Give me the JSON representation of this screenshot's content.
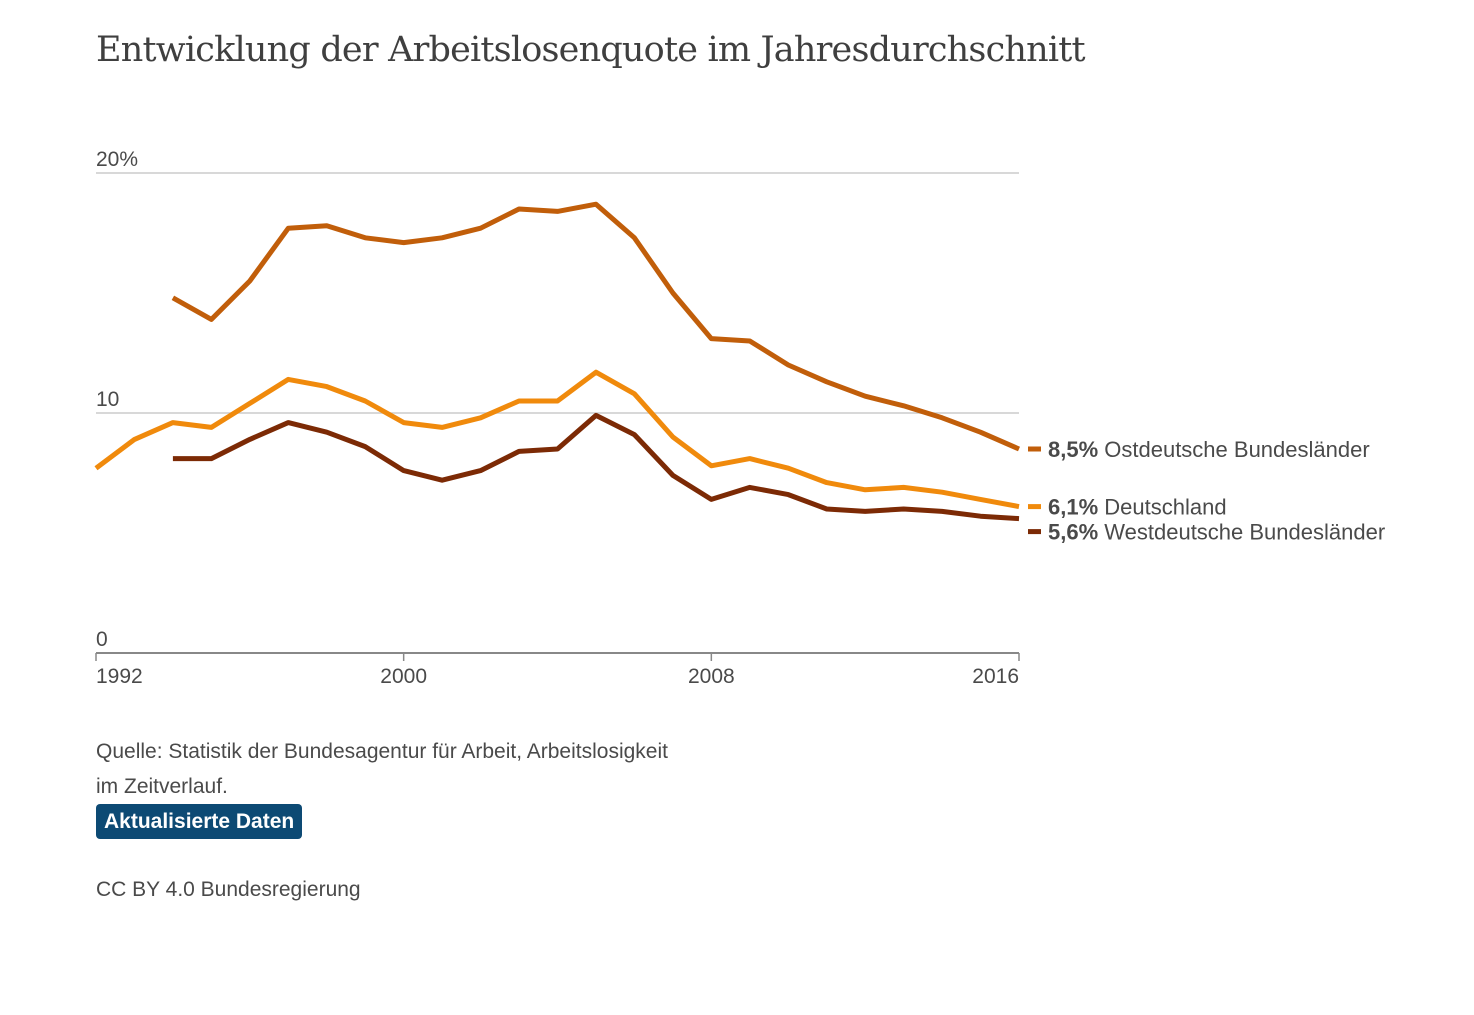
{
  "title": "Entwicklung der Arbeitslosenquote im Jahresdurchschnitt",
  "chart_data": {
    "type": "line",
    "title": "Entwicklung der Arbeitslosenquote im Jahresdurchschnitt",
    "xlim": [
      1992,
      2016
    ],
    "ylim": [
      0,
      20
    ],
    "x_ticks": [
      {
        "value": 1992,
        "label": "1992"
      },
      {
        "value": 2000,
        "label": "2000"
      },
      {
        "value": 2008,
        "label": "2008"
      },
      {
        "value": 2016,
        "label": "2016"
      }
    ],
    "y_ticks": [
      {
        "value": 20,
        "label": "20%"
      },
      {
        "value": 10,
        "label": "10"
      },
      {
        "value": 0,
        "label": "0"
      }
    ],
    "grid": true,
    "series": [
      {
        "name": "Ostdeutsche Bundesländer",
        "end_value_label": "8,5%",
        "color": "#c15e0a",
        "x": [
          1994,
          1995,
          1996,
          1997,
          1998,
          1999,
          2000,
          2001,
          2002,
          2003,
          2004,
          2005,
          2006,
          2007,
          2008,
          2009,
          2010,
          2011,
          2012,
          2013,
          2014,
          2015,
          2016
        ],
        "values": [
          14.8,
          13.9,
          15.5,
          17.7,
          17.8,
          17.3,
          17.1,
          17.3,
          17.7,
          18.5,
          18.4,
          18.7,
          17.3,
          15.0,
          13.1,
          13.0,
          12.0,
          11.3,
          10.7,
          10.3,
          9.8,
          9.2,
          8.5
        ]
      },
      {
        "name": "Deutschland",
        "end_value_label": "6,1%",
        "color": "#f08a0c",
        "x": [
          1992,
          1993,
          1994,
          1995,
          1996,
          1997,
          1998,
          1999,
          2000,
          2001,
          2002,
          2003,
          2004,
          2005,
          2006,
          2007,
          2008,
          2009,
          2010,
          2011,
          2012,
          2013,
          2014,
          2015,
          2016
        ],
        "values": [
          7.7,
          8.9,
          9.6,
          9.4,
          10.4,
          11.4,
          11.1,
          10.5,
          9.6,
          9.4,
          9.8,
          10.5,
          10.5,
          11.7,
          10.8,
          9.0,
          7.8,
          8.1,
          7.7,
          7.1,
          6.8,
          6.9,
          6.7,
          6.4,
          6.1
        ]
      },
      {
        "name": "Westdeutsche Bundesländer",
        "end_value_label": "5,6%",
        "color": "#7c2a05",
        "x": [
          1994,
          1995,
          1996,
          1997,
          1998,
          1999,
          2000,
          2001,
          2002,
          2003,
          2004,
          2005,
          2006,
          2007,
          2008,
          2009,
          2010,
          2011,
          2012,
          2013,
          2014,
          2015,
          2016
        ],
        "values": [
          8.1,
          8.1,
          8.9,
          9.6,
          9.2,
          8.6,
          7.6,
          7.2,
          7.6,
          8.4,
          8.5,
          9.9,
          9.1,
          7.4,
          6.4,
          6.9,
          6.6,
          6.0,
          5.9,
          6.0,
          5.9,
          5.7,
          5.6
        ]
      }
    ]
  },
  "source": {
    "line1": "Quelle: Statistik der Bundesagentur für Arbeit, Arbeitslosigkeit",
    "line2": "im Zeitverlauf."
  },
  "update_button": {
    "label": "Aktualisierte Daten",
    "color": "#0d4a74"
  },
  "license": "CC BY 4.0 Bundesregierung"
}
